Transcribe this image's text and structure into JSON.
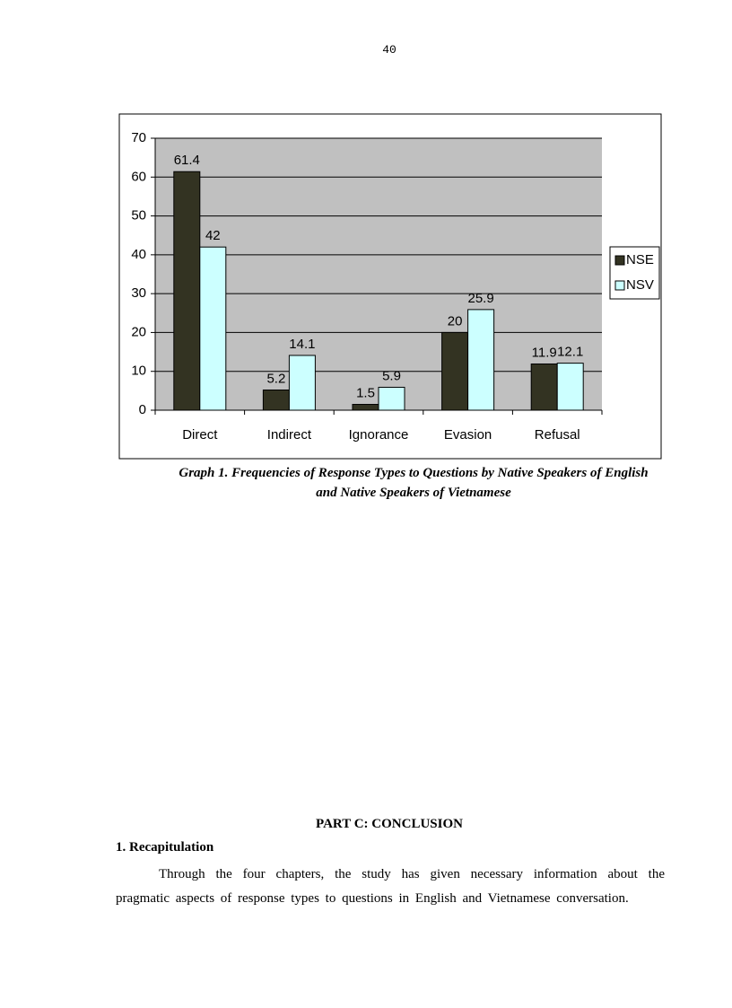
{
  "page_number": "40",
  "chart_data": {
    "type": "bar",
    "categories": [
      "Direct",
      "Indirect",
      "Ignorance",
      "Evasion",
      "Refusal"
    ],
    "series": [
      {
        "name": "NSE",
        "color": "#333322",
        "values": [
          61.4,
          5.2,
          1.5,
          20,
          11.9
        ]
      },
      {
        "name": "NSV",
        "color": "#ccffff",
        "values": [
          42,
          14.1,
          5.9,
          25.9,
          12.1
        ]
      }
    ],
    "ylim": [
      0,
      70
    ],
    "yticks": [
      0,
      10,
      20,
      30,
      40,
      50,
      60,
      70
    ],
    "grid": true,
    "legend": "right"
  },
  "caption": "Graph 1. Frequencies of Response Types to Questions by Native Speakers of English and Native Speakers of Vietnamese",
  "heading": "PART C: CONCLUSION",
  "subheading": "1. Recapitulation",
  "paragraph": "Through the four chapters, the study has given necessary information about the pragmatic aspects of response types to questions in English and Vietnamese conversation."
}
